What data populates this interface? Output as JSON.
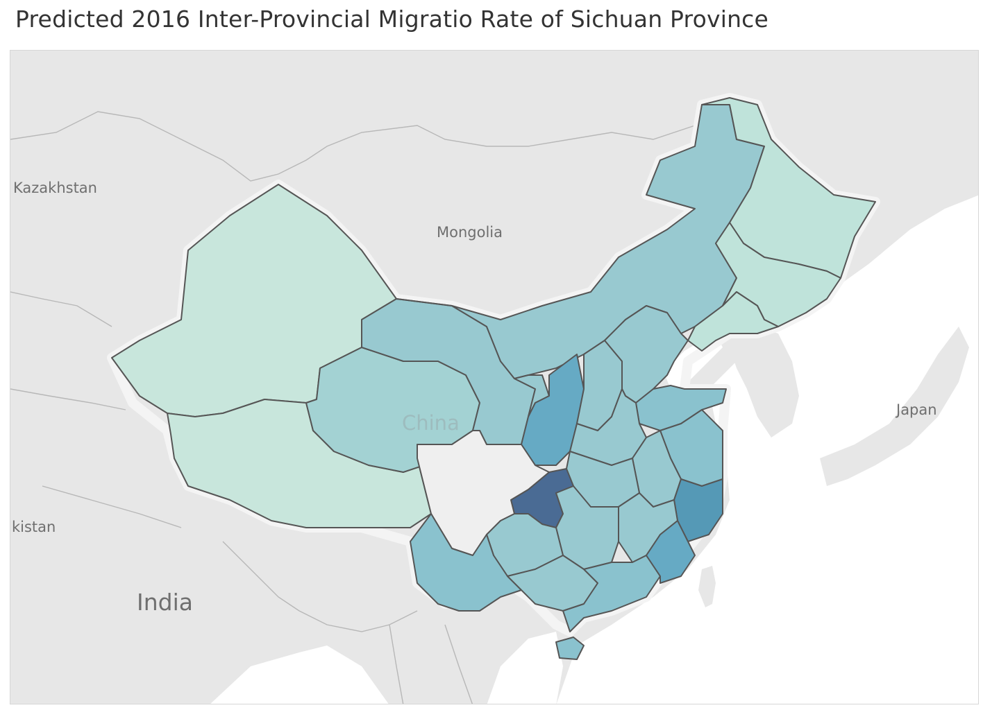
{
  "title": "Predicted 2016 Inter-Provincial Migratio Rate of Sichuan Province",
  "map": {
    "labels": {
      "kazakhstan": "Kazakhstan",
      "mongolia": "Mongolia",
      "china": "China",
      "japan": "Japan",
      "india": "India",
      "pakistan_partial": "kistan"
    },
    "highlighted_region": "Sichuan",
    "colors": {
      "lightest": "#c8e6dc",
      "light": "#bfe3da",
      "mid_light": "#a3d2d3",
      "mid": "#98c9d0",
      "mid_dark": "#8ac2ce",
      "dark": "#66aac4",
      "darker": "#5599b6",
      "darkest": "#4a6b94",
      "origin": "#efefef"
    },
    "provinces": [
      {
        "name": "Xinjiang",
        "shade": "lightest"
      },
      {
        "name": "Tibet",
        "shade": "lightest"
      },
      {
        "name": "Qinghai",
        "shade": "mid_light"
      },
      {
        "name": "Gansu",
        "shade": "mid"
      },
      {
        "name": "Inner Mongolia",
        "shade": "mid"
      },
      {
        "name": "Heilongjiang",
        "shade": "light"
      },
      {
        "name": "Jilin",
        "shade": "light"
      },
      {
        "name": "Liaoning",
        "shade": "light"
      },
      {
        "name": "Ningxia",
        "shade": "mid"
      },
      {
        "name": "Shaanxi",
        "shade": "dark"
      },
      {
        "name": "Shanxi",
        "shade": "mid"
      },
      {
        "name": "Hebei",
        "shade": "mid"
      },
      {
        "name": "Shandong",
        "shade": "mid_dark"
      },
      {
        "name": "Henan",
        "shade": "mid"
      },
      {
        "name": "Jiangsu",
        "shade": "mid_dark"
      },
      {
        "name": "Anhui",
        "shade": "mid"
      },
      {
        "name": "Hubei",
        "shade": "mid"
      },
      {
        "name": "Chongqing",
        "shade": "darkest"
      },
      {
        "name": "Sichuan",
        "shade": "origin"
      },
      {
        "name": "Zhejiang",
        "shade": "darker"
      },
      {
        "name": "Jiangxi",
        "shade": "mid"
      },
      {
        "name": "Hunan",
        "shade": "mid"
      },
      {
        "name": "Guizhou",
        "shade": "mid"
      },
      {
        "name": "Yunnan",
        "shade": "mid_dark"
      },
      {
        "name": "Guangxi",
        "shade": "mid"
      },
      {
        "name": "Guangdong",
        "shade": "mid_dark"
      },
      {
        "name": "Fujian",
        "shade": "dark"
      },
      {
        "name": "Hainan",
        "shade": "mid_dark"
      }
    ]
  }
}
